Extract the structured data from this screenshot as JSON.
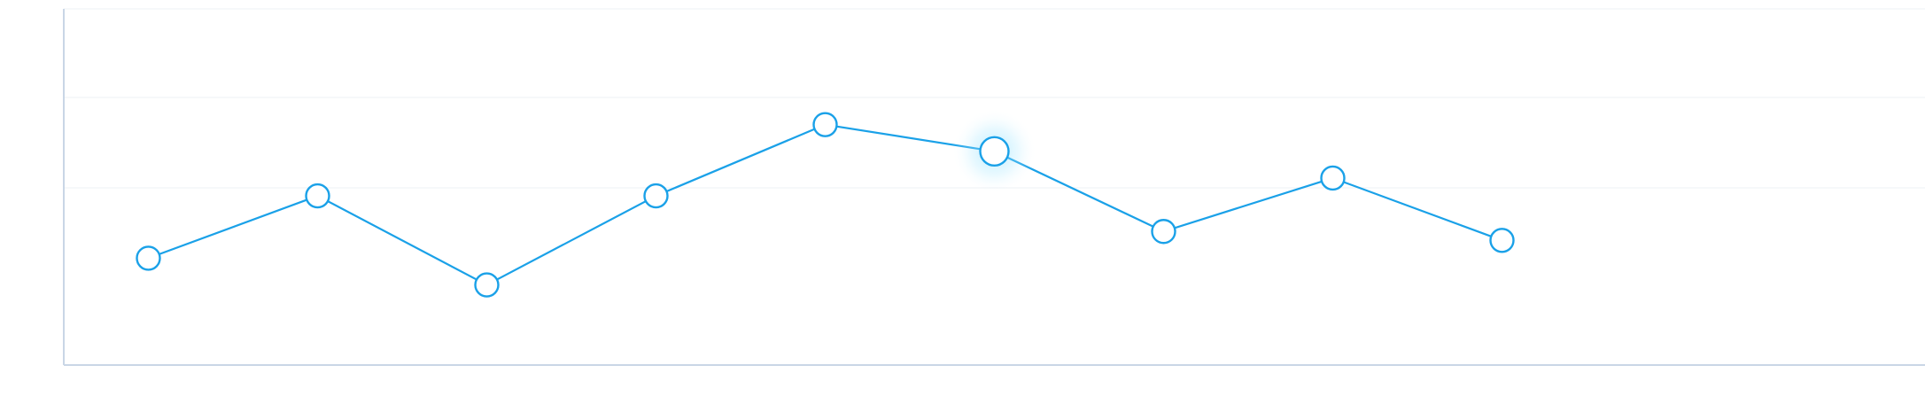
{
  "chart_data": {
    "type": "line",
    "x": [
      1,
      2,
      3,
      4,
      5,
      6,
      7,
      8,
      9
    ],
    "series": [
      {
        "values": [
          72,
          79,
          69,
          79,
          87,
          84,
          75,
          81,
          74
        ],
        "color": "#1aa1e8"
      }
    ],
    "highlighted_index": 5,
    "grid": true,
    "ylim": [
      60,
      100
    ],
    "xlim": [
      0.5,
      11.5
    ]
  }
}
